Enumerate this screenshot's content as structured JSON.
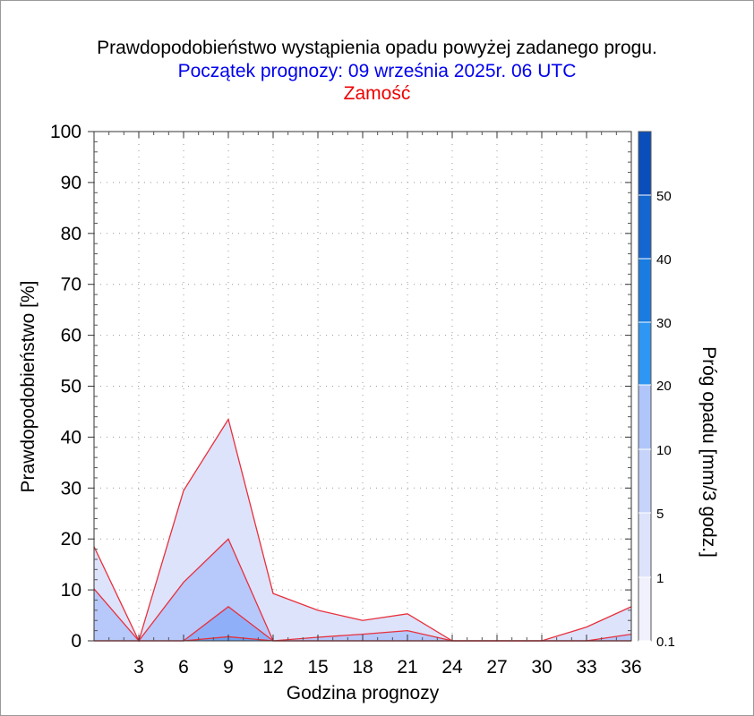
{
  "title": "Prawdopodobieństwo wystąpienia opadu powyżej zadanego progu.",
  "subtitle": "Początek prognozy: 09 września 2025r. 06 UTC",
  "location": "Zamość",
  "colors": {
    "threshold_0_1": "#dde3fb",
    "threshold_1": "#b7c8fb",
    "threshold_5": "#8fb0f8",
    "threshold_10": "#6aa0f3",
    "outline": "#e8303c",
    "title_blue": "#0000ee",
    "title_red": "#ee0000"
  },
  "chart_data": {
    "type": "area",
    "xlabel": "Godzina prognozy",
    "ylabel": "Prawdopodobieństwo [%]",
    "xlim": [
      0,
      36
    ],
    "ylim": [
      0,
      100
    ],
    "x_ticks": [
      3,
      6,
      9,
      12,
      15,
      18,
      21,
      24,
      27,
      30,
      33,
      36
    ],
    "y_ticks": [
      0,
      10,
      20,
      30,
      40,
      50,
      60,
      70,
      80,
      90,
      100
    ],
    "x": [
      0,
      3,
      6,
      9,
      12,
      15,
      18,
      21,
      24,
      27,
      30,
      33,
      36
    ],
    "series": [
      {
        "name": "0.1",
        "values": [
          18.5,
          0,
          29.5,
          43.5,
          9.3,
          6.0,
          4.0,
          5.3,
          0,
          0,
          0,
          2.7,
          6.7
        ]
      },
      {
        "name": "1",
        "values": [
          10.2,
          0,
          11.5,
          20.0,
          0,
          0.7,
          1.3,
          2.0,
          0,
          0,
          0,
          0,
          1.3
        ]
      },
      {
        "name": "5",
        "values": [
          0,
          0,
          0,
          6.7,
          0,
          0,
          0,
          0,
          0,
          0,
          0,
          0,
          0
        ]
      },
      {
        "name": "10",
        "values": [
          0,
          0,
          0,
          0.8,
          0,
          0,
          0,
          0,
          0,
          0,
          0,
          0,
          0
        ]
      }
    ],
    "colorbar": {
      "label": "Próg opadu [mm/3 godz.]",
      "ticks": [
        "0.1",
        "1",
        "5",
        "10",
        "20",
        "30",
        "40",
        "50"
      ],
      "colors": [
        "#f0f1fc",
        "#dde3fb",
        "#c7d4fb",
        "#b0c6fa",
        "#6aa6f5",
        "#2e96f3",
        "#1a7ce0",
        "#1466d0",
        "#0a4ebb"
      ]
    },
    "grid": true
  }
}
